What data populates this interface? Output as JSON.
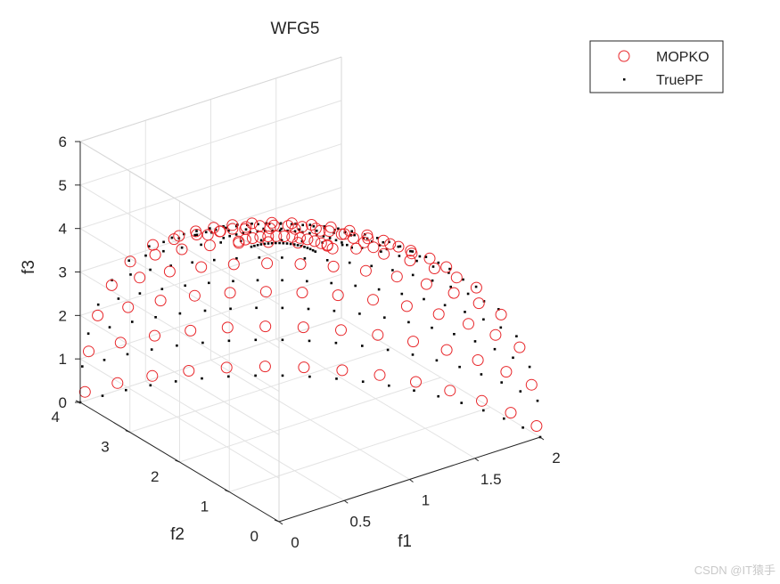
{
  "watermark": "CSDN @IT猿手",
  "chart_data": {
    "type": "scatter3d",
    "title": "WFG5",
    "xlabel": "f1",
    "ylabel": "f2",
    "zlabel": "f3",
    "xlim": [
      0,
      2
    ],
    "ylim": [
      0,
      4
    ],
    "zlim": [
      0,
      6
    ],
    "xticks": [
      "0",
      "0.5",
      "1",
      "1.5",
      "2"
    ],
    "yticks": [
      "0",
      "1",
      "2",
      "3",
      "4"
    ],
    "zticks": [
      "0",
      "1",
      "2",
      "3",
      "4",
      "5",
      "6"
    ],
    "grid": true,
    "legend_position": "top-right",
    "pareto_front": "f1^2/4 + f2^2/16 + f3^2/36 = 1",
    "series": [
      {
        "name": "MOPKO",
        "marker": "open-circle",
        "color": "#e8262a",
        "theta_steps": 9,
        "phi_steps": 14,
        "theta_range_deg": [
          12,
          88
        ],
        "phi_range_deg": [
          1,
          89
        ]
      },
      {
        "name": "TruePF",
        "marker": "dot",
        "color": "#000000",
        "theta_steps": 11,
        "phi_steps": 20,
        "theta_range_deg": [
          8,
          90
        ],
        "phi_range_deg": [
          0,
          90
        ]
      }
    ]
  }
}
